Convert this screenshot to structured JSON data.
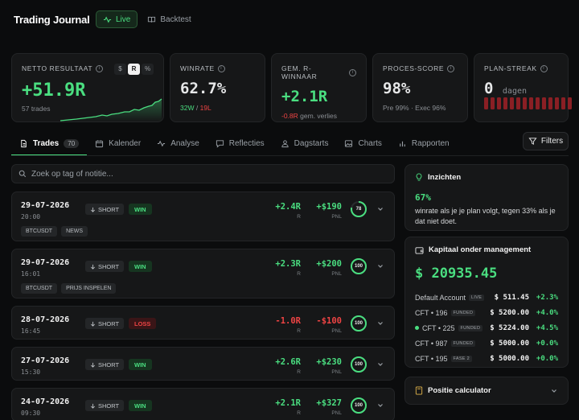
{
  "app": {
    "title": "Trading Journal"
  },
  "modes": [
    {
      "label": "Live",
      "active": true,
      "icon": "activity-icon"
    },
    {
      "label": "Backtest",
      "active": false,
      "icon": "book-icon"
    }
  ],
  "stats": {
    "netto": {
      "label": "NETTO RESULTAAT",
      "value": "+51.9R",
      "sub": "57 trades",
      "units": [
        "$",
        "R",
        "%"
      ],
      "active_unit": "R"
    },
    "winrate": {
      "label": "WINRATE",
      "value": "62.7%",
      "wins": "32W",
      "sep": " / ",
      "losses": "19L"
    },
    "avg_r": {
      "label": "GEM. R-WINNAAR",
      "value": "+2.1R",
      "loss_avg": "-0.8R",
      "loss_label": " gem. verlies"
    },
    "process": {
      "label": "PROCES-SCORE",
      "value": "98%",
      "sub": "Pre 99% · Exec 96%"
    },
    "streak": {
      "label": "PLAN-STREAK",
      "value": "0",
      "unit": "dagen",
      "bars": 14
    }
  },
  "tabs": [
    {
      "label": "Trades",
      "count": "70",
      "active": true,
      "icon": "file-icon"
    },
    {
      "label": "Kalender",
      "icon": "calendar-icon"
    },
    {
      "label": "Analyse",
      "icon": "activity-icon"
    },
    {
      "label": "Reflecties",
      "icon": "message-icon"
    },
    {
      "label": "Dagstarts",
      "icon": "user-icon"
    },
    {
      "label": "Charts",
      "icon": "image-icon"
    },
    {
      "label": "Rapporten",
      "icon": "bar-chart-icon"
    }
  ],
  "filters_label": "Filters",
  "search": {
    "placeholder": "Zoek op tag of notitie..."
  },
  "trades": [
    {
      "date": "29-07-2026",
      "time": "20:00",
      "side": "SHORT",
      "result": "WIN",
      "r": "+2.4R",
      "pnl": "+$190",
      "score": "78",
      "tags": [
        "BTCUSDT",
        "NEWS"
      ]
    },
    {
      "date": "29-07-2026",
      "time": "16:01",
      "side": "SHORT",
      "result": "WIN",
      "r": "+2.3R",
      "pnl": "+$200",
      "score": "100",
      "tags": [
        "BTCUSDT",
        "PRIJS INSPELEN"
      ]
    },
    {
      "date": "28-07-2026",
      "time": "16:45",
      "side": "SHORT",
      "result": "LOSS",
      "r": "-1.0R",
      "pnl": "-$100",
      "score": "100",
      "tags": []
    },
    {
      "date": "27-07-2026",
      "time": "15:30",
      "side": "SHORT",
      "result": "WIN",
      "r": "+2.6R",
      "pnl": "+$230",
      "score": "100",
      "tags": []
    },
    {
      "date": "24-07-2026",
      "time": "09:30",
      "side": "SHORT",
      "result": "WIN",
      "r": "+2.1R",
      "pnl": "+$327",
      "score": "100",
      "tags": []
    }
  ],
  "trade_units": {
    "r": "R",
    "pnl": "PNL"
  },
  "insights": {
    "title": "Inzichten",
    "pct": "67%",
    "text": "winrate als je je plan volgt, tegen 33% als je dat niet doet."
  },
  "capital": {
    "title": "Kapitaal onder management",
    "total": "$ 20935.45",
    "accounts": [
      {
        "name": "Default Account",
        "badge": "LIVE",
        "value": "$ 511.45",
        "pct": "+2.3%",
        "dot": false
      },
      {
        "name": "CFT • 196",
        "badge": "FUNDED",
        "value": "$ 5200.00",
        "pct": "+4.0%",
        "dot": false
      },
      {
        "name": "CFT • 225",
        "badge": "FUNDED",
        "value": "$ 5224.00",
        "pct": "+4.5%",
        "dot": true
      },
      {
        "name": "CFT • 987",
        "badge": "FUNDED",
        "value": "$ 5000.00",
        "pct": "+0.0%",
        "dot": false
      },
      {
        "name": "CFT • 195",
        "badge": "FASE 2",
        "value": "$ 5000.00",
        "pct": "+0.0%",
        "dot": false
      }
    ]
  },
  "calculator": {
    "title": "Positie calculator"
  },
  "colors": {
    "accent": "#4ade80",
    "loss": "#ef4444",
    "background": "#0b0c0d",
    "card": "#161718"
  }
}
